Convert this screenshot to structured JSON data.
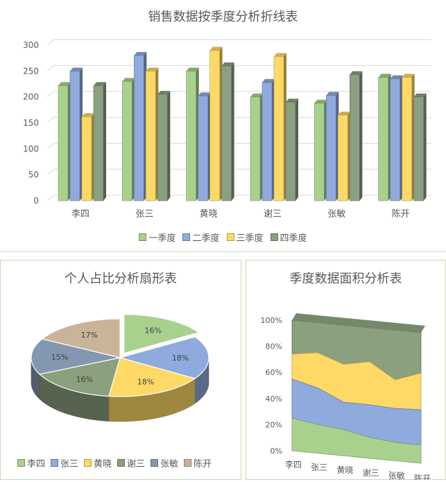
{
  "chart_data": [
    {
      "type": "bar",
      "title": "销售数据按季度分析折线表",
      "categories": [
        "李四",
        "张三",
        "黄晓",
        "谢三",
        "张敏",
        "陈开"
      ],
      "series": [
        {
          "name": "一季度",
          "values": [
            222,
            230,
            250,
            200,
            188,
            238
          ]
        },
        {
          "name": "二季度",
          "values": [
            250,
            280,
            202,
            228,
            203,
            235
          ]
        },
        {
          "name": "三季度",
          "values": [
            162,
            250,
            290,
            278,
            165,
            238
          ]
        },
        {
          "name": "四季度",
          "values": [
            222,
            205,
            260,
            190,
            243,
            200
          ]
        }
      ],
      "ylim": [
        0,
        300
      ],
      "yticks": [
        "0",
        "50",
        "100",
        "150",
        "200",
        "250",
        "300"
      ],
      "grid": true,
      "legend": "bottom",
      "colors": [
        "#a9d18e",
        "#8faadc",
        "#ffd966",
        "#8ba07e"
      ]
    },
    {
      "type": "pie",
      "title": "个人占比分析扇形表",
      "labels": [
        "李四",
        "张三",
        "黄晓",
        "谢三",
        "张敏",
        "陈开"
      ],
      "values": [
        16,
        18,
        18,
        16,
        15,
        17
      ],
      "value_labels": [
        "16%",
        "18%",
        "18%",
        "16%",
        "15%",
        "17%"
      ],
      "legend": "bottom",
      "colors": [
        "#a9d18e",
        "#8faadc",
        "#ffd966",
        "#8ba07e",
        "#8497b0",
        "#c9b49a"
      ]
    },
    {
      "type": "area",
      "title": "季度数据面积分析表",
      "categories": [
        "李四",
        "张三",
        "黄晓",
        "谢三",
        "张敏",
        "陈开"
      ],
      "series": [
        {
          "values": [
            25,
            22,
            20,
            16,
            14,
            14
          ]
        },
        {
          "values": [
            55,
            50,
            41,
            41,
            40,
            41
          ]
        },
        {
          "values": [
            74,
            77,
            70,
            74,
            62,
            69
          ]
        },
        {
          "values": [
            100,
            100,
            100,
            100,
            100,
            100
          ]
        }
      ],
      "ylim": [
        0,
        100
      ],
      "yticks": [
        "0%",
        "20%",
        "40%",
        "60%",
        "80%",
        "100%"
      ],
      "colors": [
        "#a9d18e",
        "#8faadc",
        "#ffd966",
        "#8ba07e"
      ]
    }
  ]
}
